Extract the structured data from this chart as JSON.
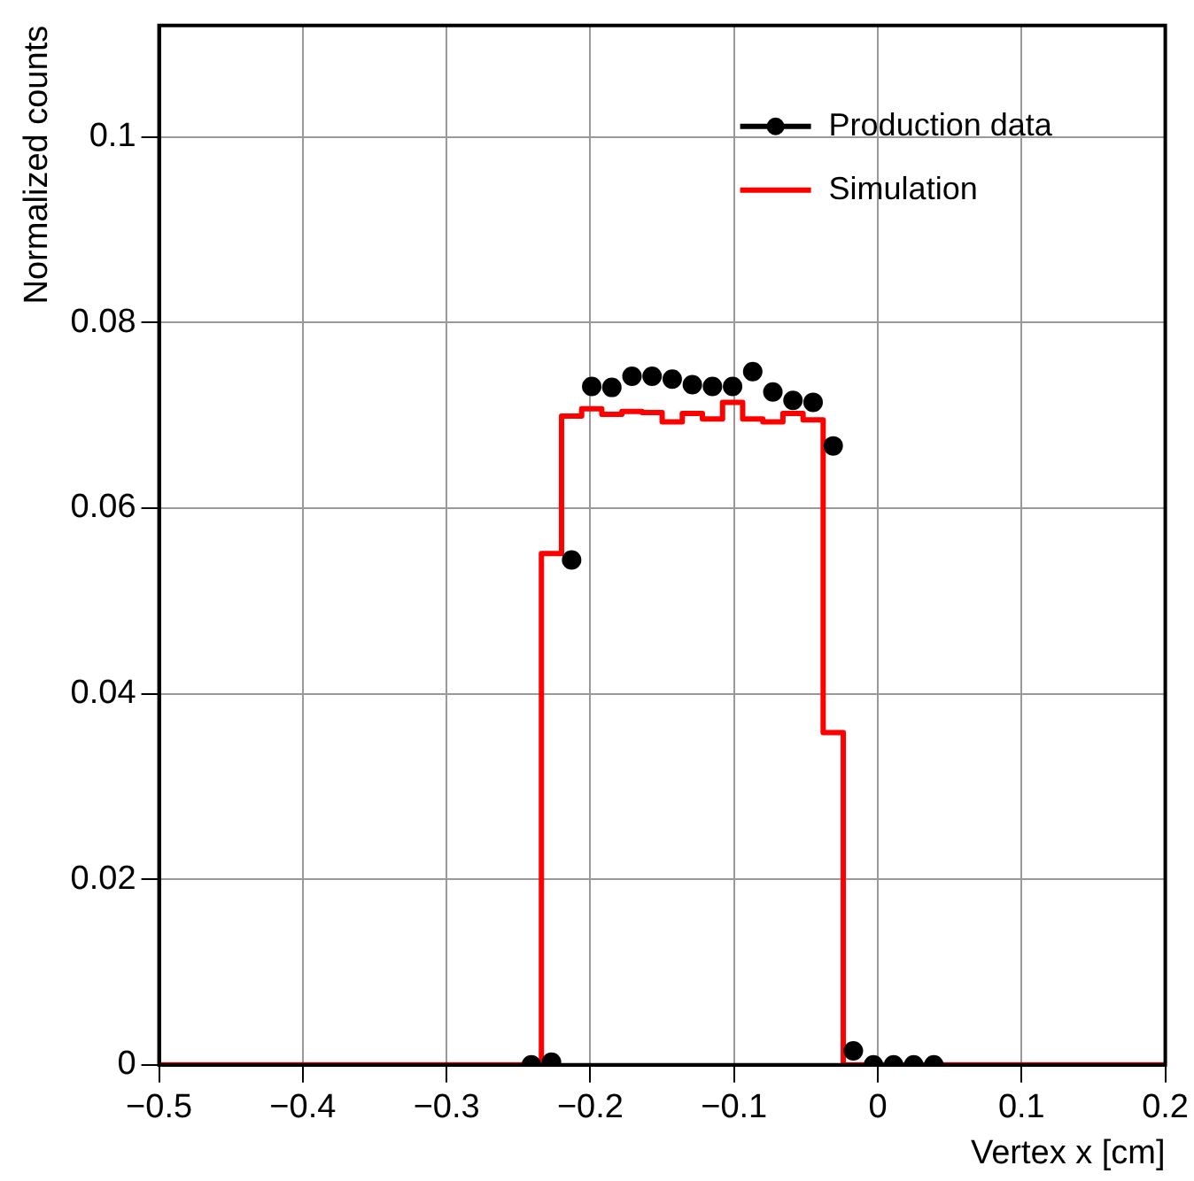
{
  "chart_data": {
    "type": "histogram",
    "xlabel": "Vertex x [cm]",
    "ylabel": "Normalized counts",
    "xlim": [
      -0.5,
      0.2
    ],
    "xticks": [
      {
        "value": -0.5,
        "label": "−0.5"
      },
      {
        "value": -0.4,
        "label": "−0.4"
      },
      {
        "value": -0.3,
        "label": "−0.3"
      },
      {
        "value": -0.2,
        "label": "−0.2"
      },
      {
        "value": -0.1,
        "label": "−0.1"
      },
      0,
      0.1,
      0.2
    ],
    "ylim": [
      0,
      0.112
    ],
    "yticks": [
      0,
      0.02,
      0.04,
      0.06,
      0.08,
      0.1
    ],
    "grid": true,
    "legend": "top right",
    "series": [
      {
        "name": "Production data",
        "type": "scatter",
        "marker": "circle",
        "color": "#000000",
        "x": [
          -0.241,
          -0.227,
          -0.213,
          -0.199,
          -0.185,
          -0.171,
          -0.157,
          -0.143,
          -0.129,
          -0.115,
          -0.101,
          -0.087,
          -0.073,
          -0.059,
          -0.045,
          -0.031,
          -0.017,
          -0.003,
          0.011,
          0.025,
          0.039
        ],
        "values": [
          0,
          0.0003,
          0.0544,
          0.0731,
          0.073,
          0.0742,
          0.0742,
          0.0739,
          0.0733,
          0.0731,
          0.0731,
          0.0747,
          0.0725,
          0.0716,
          0.0714,
          0.0667,
          0.0015,
          0,
          0,
          0,
          0
        ]
      },
      {
        "name": "Simulation",
        "color": "#ff0000",
        "bins": [
          -0.5,
          -0.486,
          -0.472,
          -0.458,
          -0.444,
          -0.43,
          -0.416,
          -0.402,
          -0.388,
          -0.374,
          -0.36,
          -0.346,
          -0.332,
          -0.318,
          -0.304,
          -0.29,
          -0.276,
          -0.262,
          -0.248,
          -0.234,
          -0.22,
          -0.206,
          -0.192,
          -0.178,
          -0.164,
          -0.15,
          -0.136,
          -0.122,
          -0.108,
          -0.094,
          -0.08,
          -0.066,
          -0.052,
          -0.038,
          -0.024,
          -0.01,
          0.004,
          0.018,
          0.032,
          0.046,
          0.06,
          0.074,
          0.088,
          0.102,
          0.116,
          0.13,
          0.144,
          0.158,
          0.172,
          0.186,
          0.2
        ],
        "values": [
          0,
          0,
          0,
          0,
          0,
          0,
          0,
          0,
          0,
          0,
          0,
          0,
          0,
          0,
          0,
          0,
          0,
          0,
          0,
          0.0551,
          0.0699,
          0.0707,
          0.0701,
          0.0704,
          0.0703,
          0.0693,
          0.0702,
          0.0696,
          0.0714,
          0.0696,
          0.0693,
          0.0702,
          0.0695,
          0.0358,
          0,
          0,
          0,
          0,
          0,
          0,
          0,
          0,
          0,
          0,
          0,
          0,
          0,
          0,
          0,
          0
        ]
      }
    ]
  }
}
